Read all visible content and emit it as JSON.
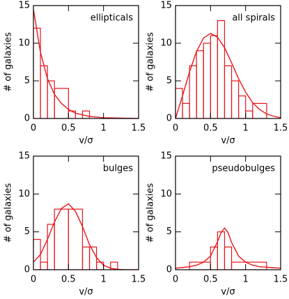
{
  "chart_data": [
    {
      "type": "histogram",
      "annotation": "ellipticals",
      "xlabel": "v/σ",
      "ylabel": "# of galaxies",
      "bins": [
        0,
        0.1,
        0.2,
        0.3,
        0.5,
        0.6,
        0.7,
        0.8
      ],
      "values": [
        12,
        7,
        5,
        4,
        1,
        0,
        1
      ],
      "color": "#e8141c",
      "fit": {
        "x": [
          0,
          0.1,
          0.2,
          0.3,
          0.4,
          0.5,
          0.6,
          0.8,
          1.0,
          1.5
        ],
        "y": [
          14.5,
          8.8,
          5.3,
          3.2,
          2.0,
          1.2,
          0.7,
          0.27,
          0.1,
          0
        ]
      },
      "xlim": [
        0,
        1.5
      ],
      "ylim": [
        0,
        15
      ],
      "xticks": [
        0,
        0.5,
        1,
        1.5
      ],
      "yticks": [
        0,
        5,
        10,
        15
      ]
    },
    {
      "type": "histogram",
      "annotation": "all spirals",
      "xlabel": "v/σ",
      "ylabel": "# of galaxies",
      "bins": [
        0,
        0.1,
        0.2,
        0.3,
        0.4,
        0.5,
        0.6,
        0.7,
        0.8,
        0.9,
        1.0,
        1.1,
        1.3
      ],
      "values": [
        4,
        2,
        7,
        9,
        10,
        11,
        13,
        7,
        5,
        3,
        1,
        2
      ],
      "color": "#e8141c",
      "fit": {
        "x": [
          0,
          0.1,
          0.2,
          0.3,
          0.4,
          0.5,
          0.6,
          0.7,
          0.8,
          0.9,
          1.0,
          1.1,
          1.2,
          1.3,
          1.4,
          1.5
        ],
        "y": [
          0,
          3.0,
          6.2,
          8.9,
          10.7,
          11.3,
          10.8,
          9.4,
          7.4,
          5.3,
          3.5,
          2.1,
          1.2,
          0.6,
          0.3,
          0.1
        ]
      },
      "xlim": [
        0,
        1.5
      ],
      "ylim": [
        0,
        15
      ],
      "xticks": [
        0,
        0.5,
        1,
        1.5
      ],
      "yticks": [
        0,
        5,
        10,
        15
      ]
    },
    {
      "type": "histogram",
      "annotation": "bulges",
      "xlabel": "v/σ",
      "ylabel": "# of galaxies",
      "bins": [
        0,
        0.1,
        0.2,
        0.3,
        0.5,
        0.7,
        0.8,
        0.9,
        1.0,
        1.1,
        1.2
      ],
      "values": [
        4,
        1,
        6,
        8,
        8,
        3,
        3,
        1,
        0,
        1
      ],
      "color": "#e8141c",
      "fit": {
        "x": [
          0,
          0.1,
          0.2,
          0.3,
          0.4,
          0.5,
          0.6,
          0.7,
          0.8,
          0.9,
          1.0,
          1.1,
          1.2,
          1.3,
          1.5
        ],
        "y": [
          1.0,
          2.0,
          4.0,
          6.3,
          8.1,
          8.7,
          7.7,
          5.7,
          3.3,
          1.6,
          0.6,
          0.2,
          0.05,
          0,
          0
        ]
      },
      "xlim": [
        0,
        1.5
      ],
      "ylim": [
        0,
        15
      ],
      "xticks": [
        0,
        0.5,
        1,
        1.5
      ],
      "yticks": [
        0,
        5,
        10,
        15
      ]
    },
    {
      "type": "histogram",
      "annotation": "pseudobulges",
      "xlabel": "v/σ",
      "ylabel": "# of galaxies",
      "bins": [
        0.2,
        0.5,
        0.6,
        0.7,
        0.8,
        1.3
      ],
      "values": [
        1,
        3,
        5,
        3,
        1
      ],
      "color": "#e8141c",
      "fit": {
        "x": [
          0,
          0.2,
          0.3,
          0.4,
          0.5,
          0.6,
          0.65,
          0.7,
          0.75,
          0.8,
          0.9,
          1.0,
          1.1,
          1.2,
          1.5
        ],
        "y": [
          0.2,
          0.4,
          0.6,
          1.0,
          1.8,
          3.7,
          4.9,
          5.5,
          4.9,
          3.6,
          1.8,
          1.0,
          0.6,
          0.4,
          0.2
        ]
      },
      "xlim": [
        0,
        1.5
      ],
      "ylim": [
        0,
        15
      ],
      "xticks": [
        0,
        0.5,
        1,
        1.5
      ],
      "yticks": [
        0,
        5,
        10,
        15
      ]
    }
  ]
}
